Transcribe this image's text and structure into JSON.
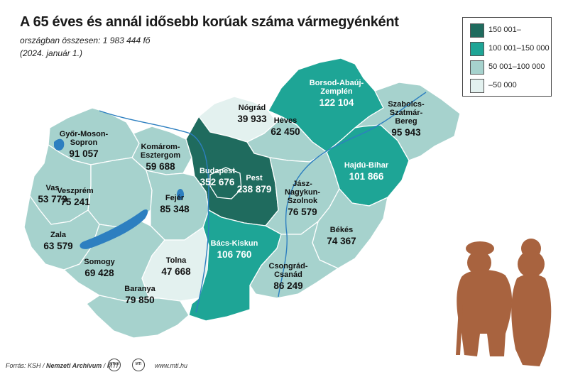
{
  "title": "A 65 éves és annál idősebb korúak száma vármegyénként",
  "subtitle": "országban összesen: 1 983 444 fő",
  "date": "(2024. január 1.)",
  "colors": {
    "cat1": "#1f6b5e",
    "cat2": "#1ea596",
    "cat3": "#a6d2cd",
    "cat4": "#e3f1ef",
    "border": "#ffffff",
    "river": "#2d7fc0",
    "silhouette": "#a8633f"
  },
  "legend": [
    {
      "label": "150 001–",
      "color": "#1f6b5e"
    },
    {
      "label": "100 001–150 000",
      "color": "#1ea596"
    },
    {
      "label": "50 001–100 000",
      "color": "#a6d2cd"
    },
    {
      "label": "–50 000",
      "color": "#e3f1ef"
    }
  ],
  "counties": [
    {
      "name": "Győr-Moson-Sopron",
      "name_lines": [
        "Győr-Moson-",
        "Sopron"
      ],
      "value": "91 057",
      "category": 3
    },
    {
      "name": "Komárom-Esztergom",
      "name_lines": [
        "Komárom-",
        "Esztergom"
      ],
      "value": "59 688",
      "category": 3
    },
    {
      "name": "Nógrád",
      "name_lines": [
        "Nógrád"
      ],
      "value": "39 933",
      "category": 4
    },
    {
      "name": "Borsod-Abaúj-Zemplén",
      "name_lines": [
        "Borsod-Abaúj-",
        "Zemplén"
      ],
      "value": "122 104",
      "category": 2
    },
    {
      "name": "Szabolcs-Szatmár-Bereg",
      "name_lines": [
        "Szabolcs-",
        "Szatmár-",
        "Bereg"
      ],
      "value": "95 943",
      "category": 3
    },
    {
      "name": "Heves",
      "name_lines": [
        "Heves"
      ],
      "value": "62 450",
      "category": 3
    },
    {
      "name": "Budapest",
      "name_lines": [
        "Budapest"
      ],
      "value": "352 676",
      "category": 1
    },
    {
      "name": "Pest",
      "name_lines": [
        "Pest"
      ],
      "value": "238 879",
      "category": 1
    },
    {
      "name": "Hajdú-Bihar",
      "name_lines": [
        "Hajdú-Bihar"
      ],
      "value": "101 866",
      "category": 2
    },
    {
      "name": "Vas",
      "name_lines": [
        "Vas"
      ],
      "value": "53 779",
      "category": 3
    },
    {
      "name": "Veszprém",
      "name_lines": [
        "Veszprém"
      ],
      "value": "75 241",
      "category": 3
    },
    {
      "name": "Fejér",
      "name_lines": [
        "Fejér"
      ],
      "value": "85 348",
      "category": 3
    },
    {
      "name": "Jász-Nagykun-Szolnok",
      "name_lines": [
        "Jász-",
        "Nagykun-",
        "Szolnok"
      ],
      "value": "76 579",
      "category": 3
    },
    {
      "name": "Zala",
      "name_lines": [
        "Zala"
      ],
      "value": "63 579",
      "category": 3
    },
    {
      "name": "Somogy",
      "name_lines": [
        "Somogy"
      ],
      "value": "69 428",
      "category": 3
    },
    {
      "name": "Tolna",
      "name_lines": [
        "Tolna"
      ],
      "value": "47 668",
      "category": 4
    },
    {
      "name": "Bács-Kiskun",
      "name_lines": [
        "Bács-Kiskun"
      ],
      "value": "106 760",
      "category": 2
    },
    {
      "name": "Békés",
      "name_lines": [
        "Békés"
      ],
      "value": "74 367",
      "category": 3
    },
    {
      "name": "Csongrád-Csanád",
      "name_lines": [
        "Csongrád-",
        "Csanád"
      ],
      "value": "86 249",
      "category": 3
    },
    {
      "name": "Baranya",
      "name_lines": [
        "Baranya"
      ],
      "value": "79 850",
      "category": 3
    }
  ],
  "footer": {
    "source_prefix": "Forrás: KSH / ",
    "source_bold": "Nemzeti Archívum",
    "source_suffix": " / MTI",
    "logo1": "MTVA",
    "logo2": "MTI",
    "url": "www.mti.hu"
  }
}
